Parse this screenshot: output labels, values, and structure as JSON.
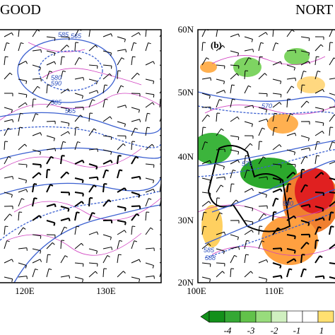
{
  "panels": [
    {
      "title": "GOOD",
      "x_labels": [
        "120E",
        "130E"
      ],
      "contour_labels": [
        "585",
        "565",
        "580",
        "590",
        "585",
        "565"
      ]
    },
    {
      "title": "NORT",
      "label": "(b)",
      "y_labels": [
        "60N",
        "50N",
        "40N",
        "30N",
        "20N"
      ],
      "x_labels": [
        "100E",
        "110E"
      ],
      "contour_labels": [
        "570",
        "575",
        "580",
        "585",
        "588"
      ]
    }
  ],
  "colorbar": {
    "labels": [
      "-4",
      "-3",
      "-2",
      "-1",
      "1"
    ]
  }
}
